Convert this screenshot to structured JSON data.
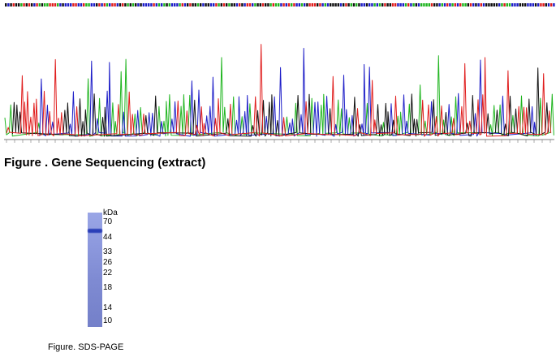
{
  "figure1": {
    "caption": "Figure . Gene Sequencing (extract)",
    "base_colors": {
      "A": "#1fb51f",
      "C": "#1e1ec8",
      "G": "#111111",
      "T": "#e01d1d"
    }
  },
  "figure2": {
    "caption": "Figure. SDS-PAGE",
    "unit_label": "kDa",
    "markers": [
      "70",
      "44",
      "33",
      "26",
      "22",
      "18",
      "14",
      "10"
    ],
    "lane_color": "#8591d6",
    "band_color": "#2b3fb8"
  }
}
